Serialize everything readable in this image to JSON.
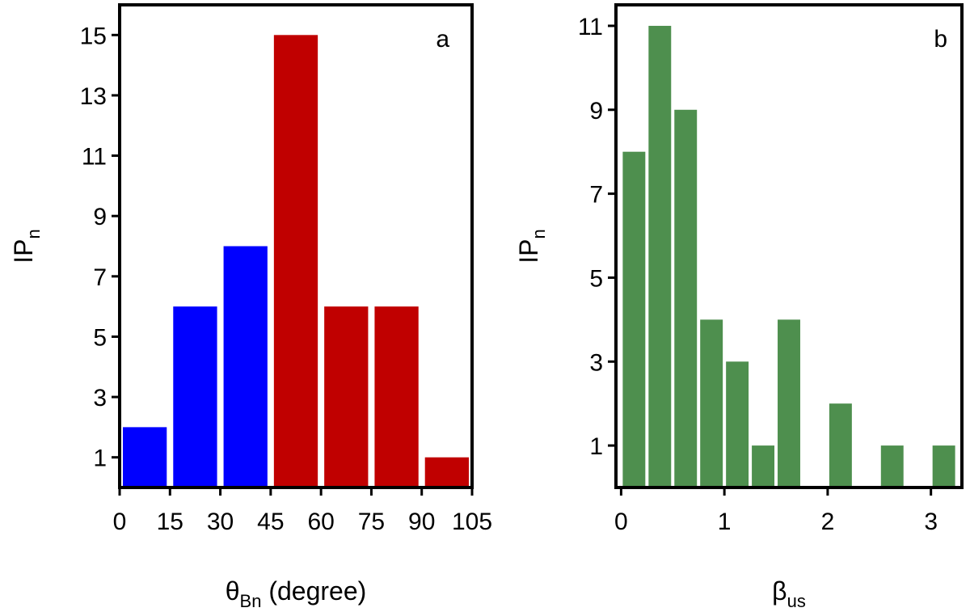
{
  "chart_data": [
    {
      "type": "bar",
      "panel_label": "a",
      "x_label_symbol": "θ",
      "x_label_sub": "Bn",
      "x_label_suffix": " (degree)",
      "y_label_main": "IP",
      "y_label_sub": "n",
      "xlim": [
        0,
        105
      ],
      "ylim": [
        0,
        16
      ],
      "bin_width": 15,
      "x_ticks": [
        0,
        15,
        30,
        45,
        60,
        75,
        90,
        105
      ],
      "x_tick_labels": [
        "0",
        "15",
        "30",
        "45",
        "60",
        "75",
        "90",
        "105"
      ],
      "y_ticks": [
        1,
        3,
        5,
        7,
        9,
        11,
        13,
        15
      ],
      "y_tick_labels": [
        "1",
        "3",
        "5",
        "7",
        "9",
        "11",
        "13",
        "15"
      ],
      "bins": [
        {
          "start": 0,
          "end": 15,
          "value": 2,
          "color": "#0000ff"
        },
        {
          "start": 15,
          "end": 30,
          "value": 6,
          "color": "#0000ff"
        },
        {
          "start": 30,
          "end": 45,
          "value": 8,
          "color": "#0000ff"
        },
        {
          "start": 45,
          "end": 60,
          "value": 15,
          "color": "#c00000"
        },
        {
          "start": 60,
          "end": 75,
          "value": 6,
          "color": "#c00000"
        },
        {
          "start": 75,
          "end": 90,
          "value": 6,
          "color": "#c00000"
        },
        {
          "start": 90,
          "end": 105,
          "value": 1,
          "color": "#c00000"
        }
      ],
      "legend": "none",
      "grid": false
    },
    {
      "type": "bar",
      "panel_label": "b",
      "x_label_symbol": "β",
      "x_label_sub": "us",
      "x_label_suffix": "",
      "y_label_main": "IP",
      "y_label_sub": "n",
      "xlim": [
        -0.05,
        3.3
      ],
      "ylim": [
        0,
        11.5
      ],
      "bin_width": 0.25,
      "x_ticks": [
        0,
        1,
        2,
        3
      ],
      "x_tick_labels": [
        "0",
        "1",
        "2",
        "3"
      ],
      "y_ticks": [
        1,
        3,
        5,
        7,
        9,
        11
      ],
      "y_tick_labels": [
        "1",
        "3",
        "5",
        "7",
        "9",
        "11"
      ],
      "bins": [
        {
          "start": 0.0,
          "end": 0.25,
          "value": 8,
          "color": "#4e8f4e"
        },
        {
          "start": 0.25,
          "end": 0.5,
          "value": 11,
          "color": "#4e8f4e"
        },
        {
          "start": 0.5,
          "end": 0.75,
          "value": 9,
          "color": "#4e8f4e"
        },
        {
          "start": 0.75,
          "end": 1.0,
          "value": 4,
          "color": "#4e8f4e"
        },
        {
          "start": 1.0,
          "end": 1.25,
          "value": 3,
          "color": "#4e8f4e"
        },
        {
          "start": 1.25,
          "end": 1.5,
          "value": 1,
          "color": "#4e8f4e"
        },
        {
          "start": 1.5,
          "end": 1.75,
          "value": 4,
          "color": "#4e8f4e"
        },
        {
          "start": 2.0,
          "end": 2.25,
          "value": 2,
          "color": "#4e8f4e"
        },
        {
          "start": 2.5,
          "end": 2.75,
          "value": 1,
          "color": "#4e8f4e"
        },
        {
          "start": 3.0,
          "end": 3.25,
          "value": 1,
          "color": "#4e8f4e"
        }
      ],
      "legend": "none",
      "grid": false
    }
  ]
}
